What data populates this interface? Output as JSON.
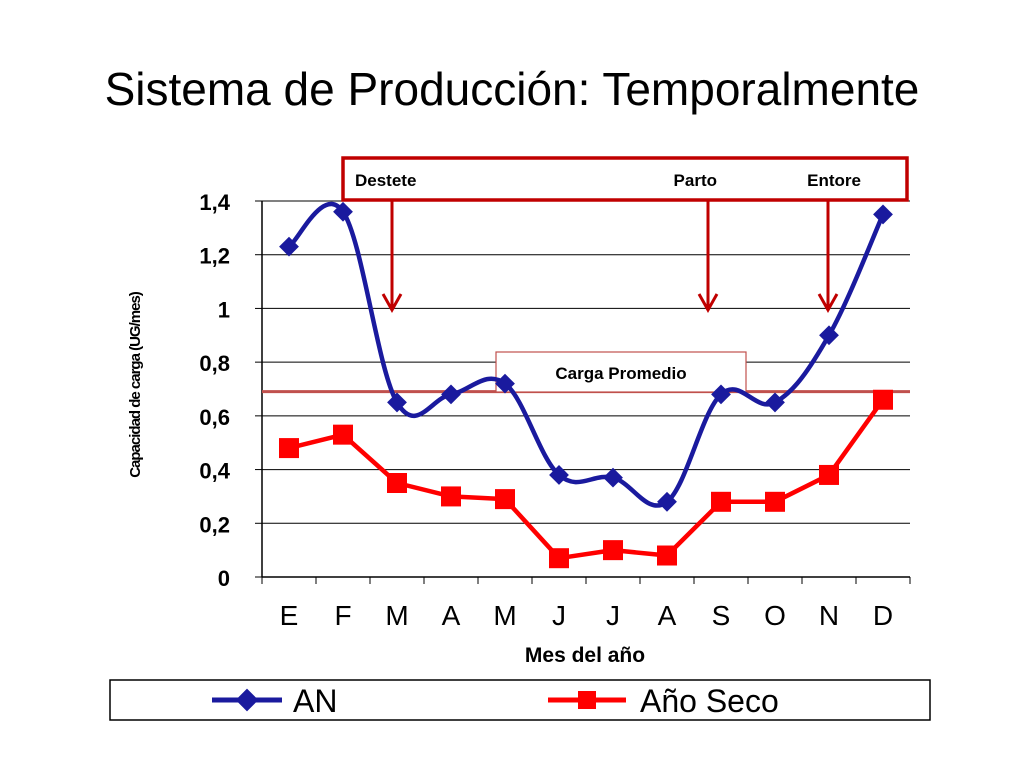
{
  "slide": {
    "title": "Sistema de Producción: Temporalmente"
  },
  "chart_data": {
    "type": "line",
    "title": "",
    "xlabel": "Mes del año",
    "ylabel": "Capacidad de carga (UG/mes)",
    "categories": [
      "E",
      "F",
      "M",
      "A",
      "M",
      "J",
      "J",
      "A",
      "S",
      "O",
      "N",
      "D"
    ],
    "ylim": [
      0,
      1.4
    ],
    "yticks": [
      "0",
      "0,2",
      "0,4",
      "0,6",
      "0,8",
      "1",
      "1,2",
      "1,4"
    ],
    "grid": true,
    "series": [
      {
        "name": "AN",
        "color": "#1a1a9e",
        "marker": "diamond",
        "values": [
          1.23,
          1.36,
          0.65,
          0.68,
          0.72,
          0.38,
          0.37,
          0.28,
          0.68,
          0.65,
          0.9,
          1.35
        ]
      },
      {
        "name": "Año Seco",
        "color": "#ff0000",
        "marker": "square",
        "values": [
          0.48,
          0.53,
          0.35,
          0.3,
          0.29,
          0.07,
          0.1,
          0.08,
          0.28,
          0.28,
          0.38,
          0.66
        ]
      }
    ],
    "reference_line": {
      "label": "Carga Promedio",
      "value": 0.69,
      "color": "#c0504d"
    },
    "annotations": [
      {
        "label": "Destete",
        "month_index": 2
      },
      {
        "label": "Parto",
        "month_index": 8
      },
      {
        "label": "Entore",
        "month_index": 10
      }
    ],
    "legend_position": "bottom"
  }
}
